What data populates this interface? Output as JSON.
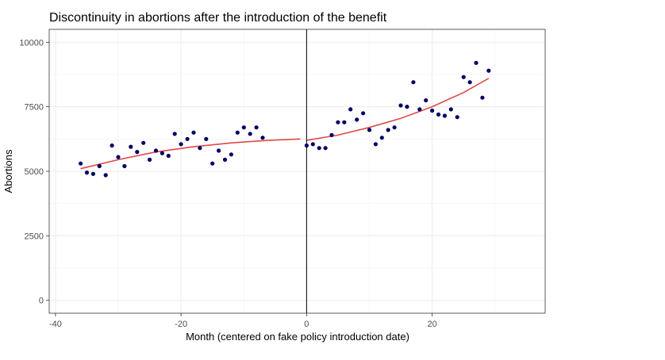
{
  "chart_data": {
    "type": "scatter",
    "title": "Discontinuity in abortions after the introduction of the benefit",
    "xlabel": "Month (centered on fake policy introduction date)",
    "ylabel": "Abortions",
    "xlim": [
      -41,
      38
    ],
    "ylim": [
      -500,
      10500
    ],
    "x_ticks": [
      -40,
      -20,
      0,
      20
    ],
    "x_tick_labels": [
      "-40",
      "-20",
      "0",
      "20"
    ],
    "y_ticks": [
      0,
      2500,
      5000,
      7500,
      10000
    ],
    "y_tick_labels": [
      "0",
      "2500",
      "5000",
      "7500",
      "10000"
    ],
    "grid": true,
    "threshold_x": 0,
    "point_color": "#000066",
    "fit_color": "#e04848",
    "points": [
      {
        "x": -36,
        "y": 5300
      },
      {
        "x": -35,
        "y": 4950
      },
      {
        "x": -34,
        "y": 4900
      },
      {
        "x": -33,
        "y": 5200
      },
      {
        "x": -32,
        "y": 4850
      },
      {
        "x": -31,
        "y": 6000
      },
      {
        "x": -30,
        "y": 5550
      },
      {
        "x": -29,
        "y": 5200
      },
      {
        "x": -28,
        "y": 5950
      },
      {
        "x": -27,
        "y": 5750
      },
      {
        "x": -26,
        "y": 6100
      },
      {
        "x": -25,
        "y": 5450
      },
      {
        "x": -24,
        "y": 5800
      },
      {
        "x": -23,
        "y": 5700
      },
      {
        "x": -22,
        "y": 5600
      },
      {
        "x": -21,
        "y": 6450
      },
      {
        "x": -20,
        "y": 6050
      },
      {
        "x": -19,
        "y": 6250
      },
      {
        "x": -18,
        "y": 6500
      },
      {
        "x": -17,
        "y": 5900
      },
      {
        "x": -16,
        "y": 6250
      },
      {
        "x": -15,
        "y": 5300
      },
      {
        "x": -14,
        "y": 5800
      },
      {
        "x": -13,
        "y": 5450
      },
      {
        "x": -12,
        "y": 5650
      },
      {
        "x": -11,
        "y": 6500
      },
      {
        "x": -10,
        "y": 6700
      },
      {
        "x": -9,
        "y": 6450
      },
      {
        "x": -8,
        "y": 6700
      },
      {
        "x": -7,
        "y": 6300
      },
      {
        "x": 0,
        "y": 6000
      },
      {
        "x": 1,
        "y": 6050
      },
      {
        "x": 2,
        "y": 5900
      },
      {
        "x": 3,
        "y": 5900
      },
      {
        "x": 4,
        "y": 6400
      },
      {
        "x": 5,
        "y": 6900
      },
      {
        "x": 6,
        "y": 6900
      },
      {
        "x": 7,
        "y": 7400
      },
      {
        "x": 8,
        "y": 7000
      },
      {
        "x": 9,
        "y": 7250
      },
      {
        "x": 10,
        "y": 6600
      },
      {
        "x": 11,
        "y": 6050
      },
      {
        "x": 12,
        "y": 6300
      },
      {
        "x": 13,
        "y": 6600
      },
      {
        "x": 14,
        "y": 6700
      },
      {
        "x": 15,
        "y": 7550
      },
      {
        "x": 16,
        "y": 7500
      },
      {
        "x": 17,
        "y": 8450
      },
      {
        "x": 18,
        "y": 7400
      },
      {
        "x": 19,
        "y": 7750
      },
      {
        "x": 20,
        "y": 7350
      },
      {
        "x": 21,
        "y": 7200
      },
      {
        "x": 22,
        "y": 7150
      },
      {
        "x": 23,
        "y": 7400
      },
      {
        "x": 24,
        "y": 7100
      },
      {
        "x": 25,
        "y": 8650
      },
      {
        "x": 26,
        "y": 8450
      },
      {
        "x": 27,
        "y": 9200
      },
      {
        "x": 28,
        "y": 7850
      },
      {
        "x": 29,
        "y": 8900
      }
    ],
    "fit_lines": [
      {
        "x": [
          -36,
          -30,
          -24,
          -18,
          -12,
          -6,
          -1
        ],
        "y": [
          5100,
          5450,
          5750,
          5950,
          6100,
          6200,
          6250
        ]
      },
      {
        "x": [
          0,
          5,
          10,
          15,
          20,
          25,
          29
        ],
        "y": [
          6200,
          6400,
          6700,
          7050,
          7500,
          8050,
          8600
        ]
      }
    ]
  }
}
